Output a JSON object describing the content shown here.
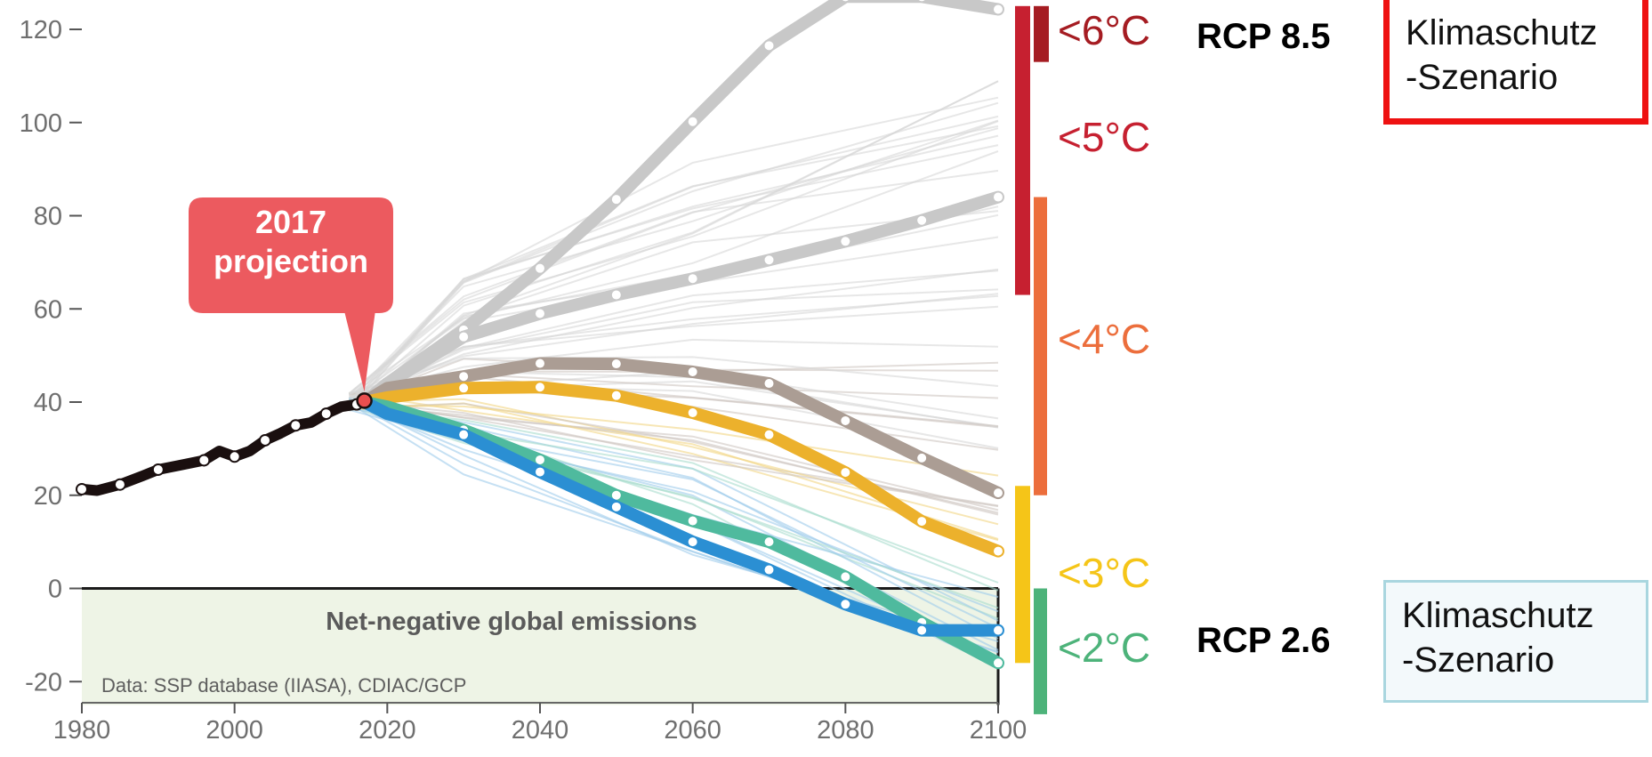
{
  "chart_data": {
    "type": "line",
    "title": "",
    "xlabel": "",
    "ylabel": "",
    "xlim": [
      1980,
      2100
    ],
    "ylim": [
      -25,
      125
    ],
    "x_ticks": [
      "1980",
      "2000",
      "2020",
      "2040",
      "2060",
      "2080",
      "2100"
    ],
    "y_ticks": [
      "120",
      "100",
      "80",
      "60",
      "40",
      "20",
      "0",
      "-20"
    ],
    "historical": {
      "color": "#1a0f0f",
      "points": [
        [
          1980,
          21.3
        ],
        [
          1982,
          21
        ],
        [
          1985,
          22.3
        ],
        [
          1988,
          24.2
        ],
        [
          1990,
          25.5
        ],
        [
          1993,
          26.5
        ],
        [
          1996,
          27.5
        ],
        [
          1998,
          29.5
        ],
        [
          2000,
          28.3
        ],
        [
          2002,
          29.5
        ],
        [
          2004,
          31.8
        ],
        [
          2006,
          33.3
        ],
        [
          2008,
          35
        ],
        [
          2010,
          35.6
        ],
        [
          2012,
          37.5
        ],
        [
          2014,
          39
        ],
        [
          2016,
          39.5
        ],
        [
          2017,
          40.3
        ]
      ]
    },
    "highlighted_series": [
      {
        "color": "#c8c8c8",
        "points": [
          [
            2017,
            40
          ],
          [
            2020,
            44
          ],
          [
            2030,
            55.5
          ],
          [
            2040,
            68.7
          ],
          [
            2050,
            83.5
          ],
          [
            2060,
            100.2
          ],
          [
            2070,
            116.5
          ],
          [
            2080,
            127
          ],
          [
            2090,
            127
          ],
          [
            2100,
            124.3
          ]
        ]
      },
      {
        "color": "#c8c8c8",
        "points": [
          [
            2017,
            40
          ],
          [
            2020,
            44
          ],
          [
            2030,
            54
          ],
          [
            2040,
            59
          ],
          [
            2050,
            63
          ],
          [
            2060,
            66.5
          ],
          [
            2070,
            70.5
          ],
          [
            2080,
            74.5
          ],
          [
            2090,
            79
          ],
          [
            2100,
            84
          ]
        ]
      },
      {
        "color": "#ab9d94",
        "points": [
          [
            2017,
            40
          ],
          [
            2020,
            43
          ],
          [
            2030,
            45.5
          ],
          [
            2040,
            48.3
          ],
          [
            2050,
            48.2
          ],
          [
            2060,
            46.5
          ],
          [
            2070,
            44
          ],
          [
            2080,
            36
          ],
          [
            2090,
            28
          ],
          [
            2100,
            20.5
          ]
        ]
      },
      {
        "color": "#ecb12c",
        "points": [
          [
            2017,
            40
          ],
          [
            2020,
            41
          ],
          [
            2030,
            43
          ],
          [
            2040,
            43.2
          ],
          [
            2050,
            41.4
          ],
          [
            2060,
            37.7
          ],
          [
            2070,
            33
          ],
          [
            2080,
            24.9
          ],
          [
            2090,
            14.4
          ],
          [
            2100,
            8
          ]
        ]
      },
      {
        "color": "#4fba9e",
        "points": [
          [
            2017,
            40
          ],
          [
            2020,
            39
          ],
          [
            2030,
            34
          ],
          [
            2040,
            27.6
          ],
          [
            2050,
            20
          ],
          [
            2060,
            14.5
          ],
          [
            2070,
            10
          ],
          [
            2080,
            2.5
          ],
          [
            2090,
            -7.3
          ],
          [
            2100,
            -16
          ]
        ]
      },
      {
        "color": "#2b8fd3",
        "points": [
          [
            2017,
            40
          ],
          [
            2020,
            37.5
          ],
          [
            2030,
            33
          ],
          [
            2040,
            25
          ],
          [
            2050,
            17.5
          ],
          [
            2060,
            10
          ],
          [
            2070,
            4
          ],
          [
            2080,
            -3.4
          ],
          [
            2090,
            -9
          ],
          [
            2100,
            -9
          ]
        ]
      }
    ],
    "temperature_bands": [
      {
        "label": "<6°C",
        "color": "#a51c22",
        "range": [
          113,
          125
        ]
      },
      {
        "label": "<5°C",
        "color": "#c62030",
        "range": [
          63,
          125
        ]
      },
      {
        "label": "<4°C",
        "color": "#ec6e3c",
        "range": [
          20,
          84
        ]
      },
      {
        "label": "<3°C",
        "color": "#f5c518",
        "range": [
          -16,
          22
        ]
      },
      {
        "label": "<2°C",
        "color": "#4db37a",
        "range": [
          -27,
          0
        ]
      }
    ],
    "annotations": {
      "projection_label_line1": "2017",
      "projection_label_line2": "projection",
      "negative_region_label": "Net-negative global emissions",
      "source": "Data: SSP database (IIASA), CDIAC/GCP"
    }
  },
  "rcp_labels": {
    "high": "RCP 8.5",
    "low": "RCP 2.6"
  },
  "callouts": {
    "top": {
      "line1": "Klimaschutz",
      "line2": "-Szenario",
      "border_color": "#ee1111"
    },
    "bottom": {
      "line1": "Klimaschutz",
      "line2": "-Szenario",
      "border_color": "#a9d6df"
    }
  }
}
